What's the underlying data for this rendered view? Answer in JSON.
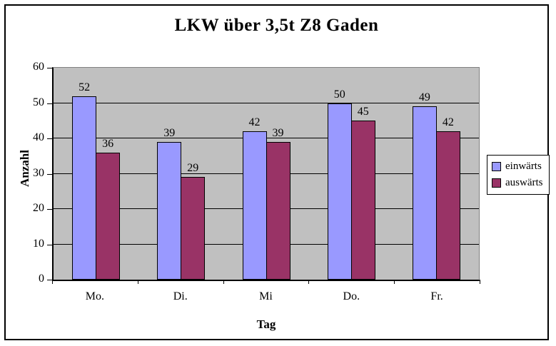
{
  "chart": {
    "title": "LKW über 3,5t Z8 Gaden"
  },
  "chart_data": {
    "type": "bar",
    "title": "LKW über 3,5t Z8 Gaden",
    "categories": [
      "Mo.",
      "Di.",
      "Mi",
      "Do.",
      "Fr."
    ],
    "series": [
      {
        "name": "einwärts",
        "color": "#9999ff",
        "values": [
          52,
          39,
          42,
          50,
          49
        ]
      },
      {
        "name": "auswärts",
        "color": "#993366",
        "values": [
          36,
          29,
          39,
          45,
          42
        ]
      }
    ],
    "xlabel": "Tag",
    "ylabel": "Anzahl",
    "ylim": [
      0,
      60
    ],
    "ytick_step": 10,
    "grid": true,
    "data_labels": true,
    "legend_position": "right",
    "plot_bg": "#c0c0c0",
    "outer_border_color": "#000000",
    "gridline_color": "#000000"
  }
}
